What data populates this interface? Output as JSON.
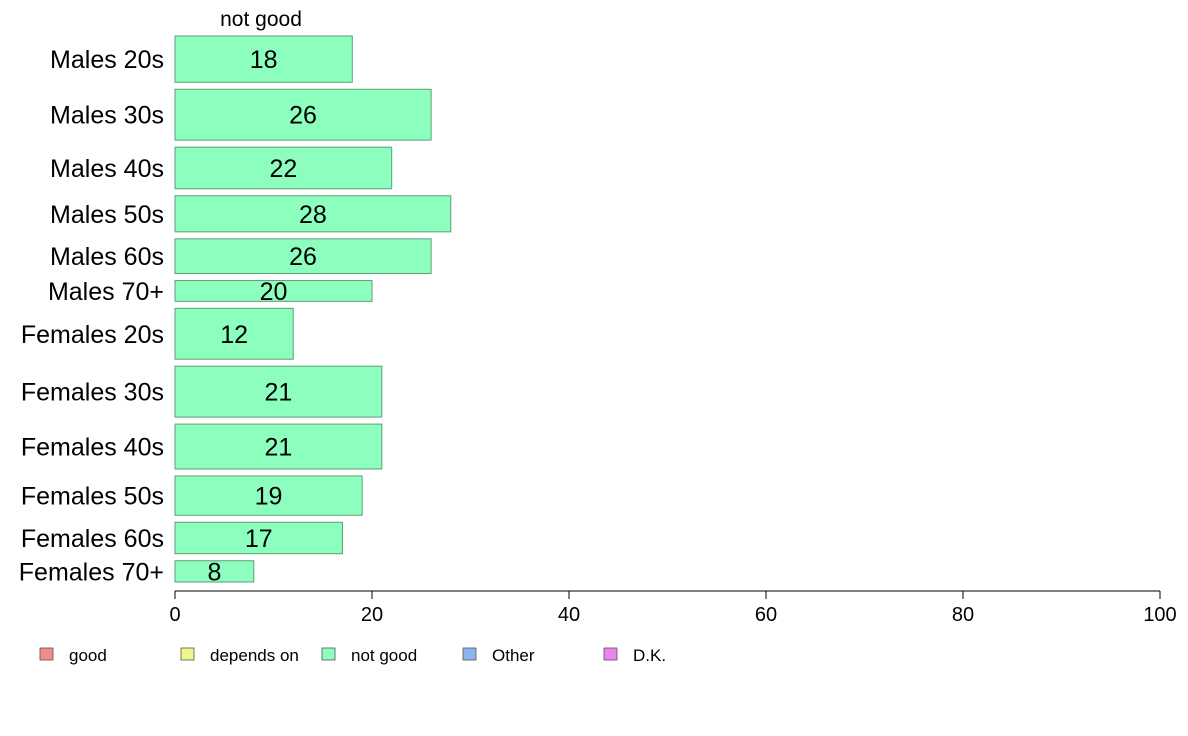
{
  "chart_data": {
    "type": "bar",
    "orientation": "horizontal",
    "column_title": "not good",
    "categories": [
      "Males 20s",
      "Males 30s",
      "Males 40s",
      "Males 50s",
      "Males 60s",
      "Males 70+",
      "Females 20s",
      "Females 30s",
      "Females 40s",
      "Females 50s",
      "Females 60s",
      "Females 70+"
    ],
    "series": [
      {
        "name": "not good",
        "values": [
          18,
          26,
          22,
          28,
          26,
          20,
          12,
          21,
          21,
          19,
          17,
          8
        ]
      }
    ],
    "relative_widths": [
      1.0,
      1.1,
      0.9,
      0.78,
      0.75,
      0.45,
      1.1,
      1.1,
      0.97,
      0.85,
      0.68,
      0.46
    ],
    "xlim": [
      0,
      100
    ],
    "xticks": [
      0,
      20,
      40,
      60,
      80,
      100
    ],
    "xlabel": "",
    "ylabel": "",
    "grid": false,
    "legend": {
      "placement": "bottom",
      "entries": [
        {
          "label": "good",
          "color": "#f28b8b"
        },
        {
          "label": "depends on",
          "color": "#eef58a"
        },
        {
          "label": "not good",
          "color": "#8cffbe"
        },
        {
          "label": "Other",
          "color": "#8cb4f0"
        },
        {
          "label": "D.K.",
          "color": "#ee82f0"
        }
      ]
    },
    "bar_color": "#8cffbe",
    "bar_stroke": "#5e9e78"
  }
}
